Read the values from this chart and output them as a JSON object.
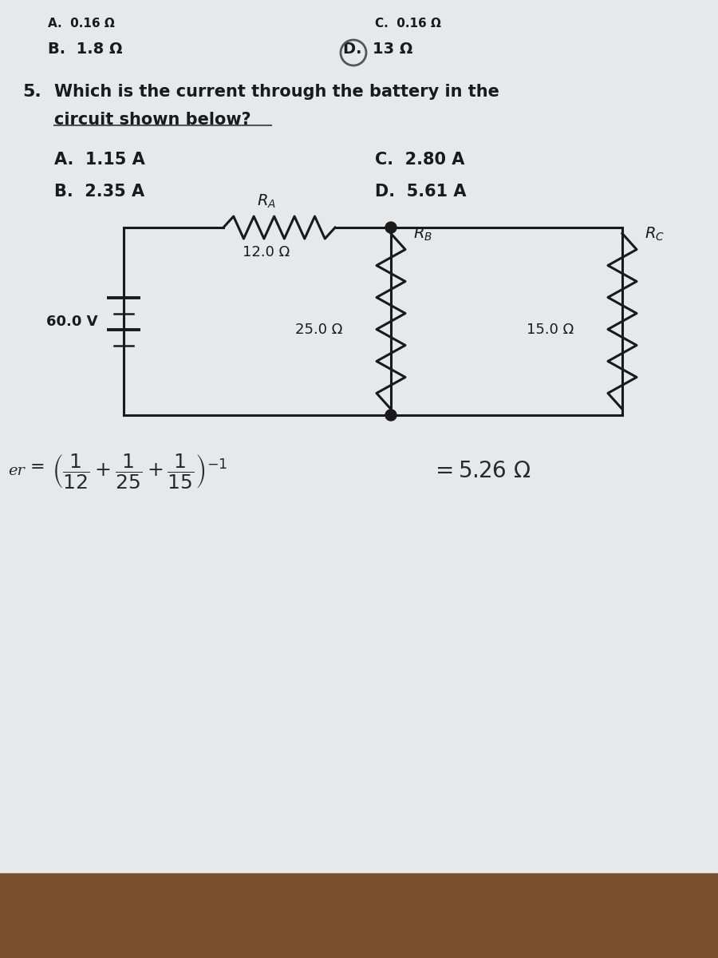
{
  "bg_color": "#d5d9dc",
  "paper_color": "#e5e9eb",
  "prev_answer_B": "B.  1.8 Ω",
  "prev_answer_D": "D.  13 Ω",
  "question_text_line1": "Which is the current through the battery in the",
  "question_text_line2": "circuit shown below?",
  "ans_A": "A.  1.15 A",
  "ans_C": "C.  2.80 A",
  "ans_B": "B.  2.35 A",
  "ans_D": "D.  5.61 A",
  "voltage": "60.0 V",
  "RA_val": "12.0 Ω",
  "RB_val": "25.0 Ω",
  "RC_val": "15.0 Ω",
  "wire_color": "#1a1a1a",
  "wood_color": "#7a4e2d",
  "text_color": "#1a1a1a",
  "lw_circuit": 2.2,
  "lw_wire": 2.0
}
